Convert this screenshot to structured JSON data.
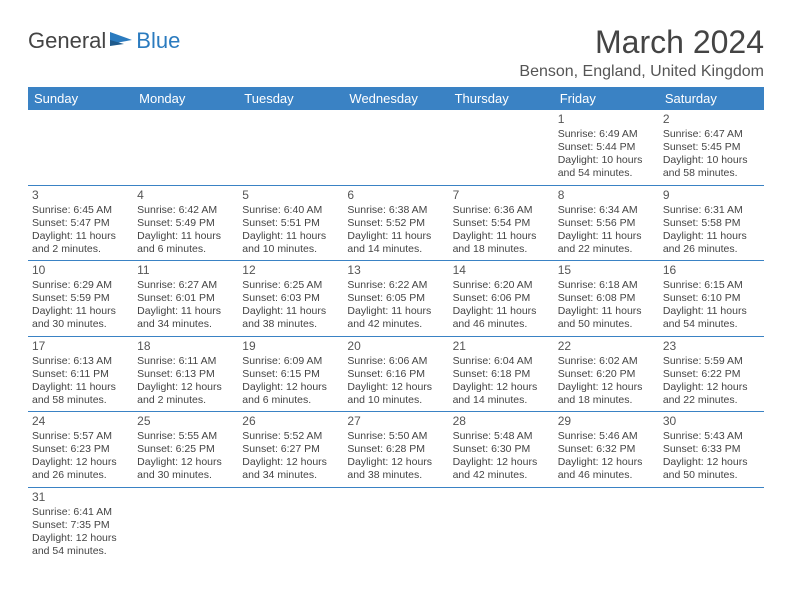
{
  "logo": {
    "text1": "General",
    "text2": "Blue"
  },
  "title": "March 2024",
  "location": "Benson, England, United Kingdom",
  "colors": {
    "header_bg": "#3a82c4",
    "header_fg": "#ffffff",
    "border": "#3a82c4",
    "text": "#444444"
  },
  "weekdays": [
    "Sunday",
    "Monday",
    "Tuesday",
    "Wednesday",
    "Thursday",
    "Friday",
    "Saturday"
  ],
  "weeks": [
    [
      null,
      null,
      null,
      null,
      null,
      {
        "day": "1",
        "sunrise": "Sunrise: 6:49 AM",
        "sunset": "Sunset: 5:44 PM",
        "daylight": "Daylight: 10 hours and 54 minutes."
      },
      {
        "day": "2",
        "sunrise": "Sunrise: 6:47 AM",
        "sunset": "Sunset: 5:45 PM",
        "daylight": "Daylight: 10 hours and 58 minutes."
      }
    ],
    [
      {
        "day": "3",
        "sunrise": "Sunrise: 6:45 AM",
        "sunset": "Sunset: 5:47 PM",
        "daylight": "Daylight: 11 hours and 2 minutes."
      },
      {
        "day": "4",
        "sunrise": "Sunrise: 6:42 AM",
        "sunset": "Sunset: 5:49 PM",
        "daylight": "Daylight: 11 hours and 6 minutes."
      },
      {
        "day": "5",
        "sunrise": "Sunrise: 6:40 AM",
        "sunset": "Sunset: 5:51 PM",
        "daylight": "Daylight: 11 hours and 10 minutes."
      },
      {
        "day": "6",
        "sunrise": "Sunrise: 6:38 AM",
        "sunset": "Sunset: 5:52 PM",
        "daylight": "Daylight: 11 hours and 14 minutes."
      },
      {
        "day": "7",
        "sunrise": "Sunrise: 6:36 AM",
        "sunset": "Sunset: 5:54 PM",
        "daylight": "Daylight: 11 hours and 18 minutes."
      },
      {
        "day": "8",
        "sunrise": "Sunrise: 6:34 AM",
        "sunset": "Sunset: 5:56 PM",
        "daylight": "Daylight: 11 hours and 22 minutes."
      },
      {
        "day": "9",
        "sunrise": "Sunrise: 6:31 AM",
        "sunset": "Sunset: 5:58 PM",
        "daylight": "Daylight: 11 hours and 26 minutes."
      }
    ],
    [
      {
        "day": "10",
        "sunrise": "Sunrise: 6:29 AM",
        "sunset": "Sunset: 5:59 PM",
        "daylight": "Daylight: 11 hours and 30 minutes."
      },
      {
        "day": "11",
        "sunrise": "Sunrise: 6:27 AM",
        "sunset": "Sunset: 6:01 PM",
        "daylight": "Daylight: 11 hours and 34 minutes."
      },
      {
        "day": "12",
        "sunrise": "Sunrise: 6:25 AM",
        "sunset": "Sunset: 6:03 PM",
        "daylight": "Daylight: 11 hours and 38 minutes."
      },
      {
        "day": "13",
        "sunrise": "Sunrise: 6:22 AM",
        "sunset": "Sunset: 6:05 PM",
        "daylight": "Daylight: 11 hours and 42 minutes."
      },
      {
        "day": "14",
        "sunrise": "Sunrise: 6:20 AM",
        "sunset": "Sunset: 6:06 PM",
        "daylight": "Daylight: 11 hours and 46 minutes."
      },
      {
        "day": "15",
        "sunrise": "Sunrise: 6:18 AM",
        "sunset": "Sunset: 6:08 PM",
        "daylight": "Daylight: 11 hours and 50 minutes."
      },
      {
        "day": "16",
        "sunrise": "Sunrise: 6:15 AM",
        "sunset": "Sunset: 6:10 PM",
        "daylight": "Daylight: 11 hours and 54 minutes."
      }
    ],
    [
      {
        "day": "17",
        "sunrise": "Sunrise: 6:13 AM",
        "sunset": "Sunset: 6:11 PM",
        "daylight": "Daylight: 11 hours and 58 minutes."
      },
      {
        "day": "18",
        "sunrise": "Sunrise: 6:11 AM",
        "sunset": "Sunset: 6:13 PM",
        "daylight": "Daylight: 12 hours and 2 minutes."
      },
      {
        "day": "19",
        "sunrise": "Sunrise: 6:09 AM",
        "sunset": "Sunset: 6:15 PM",
        "daylight": "Daylight: 12 hours and 6 minutes."
      },
      {
        "day": "20",
        "sunrise": "Sunrise: 6:06 AM",
        "sunset": "Sunset: 6:16 PM",
        "daylight": "Daylight: 12 hours and 10 minutes."
      },
      {
        "day": "21",
        "sunrise": "Sunrise: 6:04 AM",
        "sunset": "Sunset: 6:18 PM",
        "daylight": "Daylight: 12 hours and 14 minutes."
      },
      {
        "day": "22",
        "sunrise": "Sunrise: 6:02 AM",
        "sunset": "Sunset: 6:20 PM",
        "daylight": "Daylight: 12 hours and 18 minutes."
      },
      {
        "day": "23",
        "sunrise": "Sunrise: 5:59 AM",
        "sunset": "Sunset: 6:22 PM",
        "daylight": "Daylight: 12 hours and 22 minutes."
      }
    ],
    [
      {
        "day": "24",
        "sunrise": "Sunrise: 5:57 AM",
        "sunset": "Sunset: 6:23 PM",
        "daylight": "Daylight: 12 hours and 26 minutes."
      },
      {
        "day": "25",
        "sunrise": "Sunrise: 5:55 AM",
        "sunset": "Sunset: 6:25 PM",
        "daylight": "Daylight: 12 hours and 30 minutes."
      },
      {
        "day": "26",
        "sunrise": "Sunrise: 5:52 AM",
        "sunset": "Sunset: 6:27 PM",
        "daylight": "Daylight: 12 hours and 34 minutes."
      },
      {
        "day": "27",
        "sunrise": "Sunrise: 5:50 AM",
        "sunset": "Sunset: 6:28 PM",
        "daylight": "Daylight: 12 hours and 38 minutes."
      },
      {
        "day": "28",
        "sunrise": "Sunrise: 5:48 AM",
        "sunset": "Sunset: 6:30 PM",
        "daylight": "Daylight: 12 hours and 42 minutes."
      },
      {
        "day": "29",
        "sunrise": "Sunrise: 5:46 AM",
        "sunset": "Sunset: 6:32 PM",
        "daylight": "Daylight: 12 hours and 46 minutes."
      },
      {
        "day": "30",
        "sunrise": "Sunrise: 5:43 AM",
        "sunset": "Sunset: 6:33 PM",
        "daylight": "Daylight: 12 hours and 50 minutes."
      }
    ],
    [
      {
        "day": "31",
        "sunrise": "Sunrise: 6:41 AM",
        "sunset": "Sunset: 7:35 PM",
        "daylight": "Daylight: 12 hours and 54 minutes."
      },
      null,
      null,
      null,
      null,
      null,
      null
    ]
  ]
}
